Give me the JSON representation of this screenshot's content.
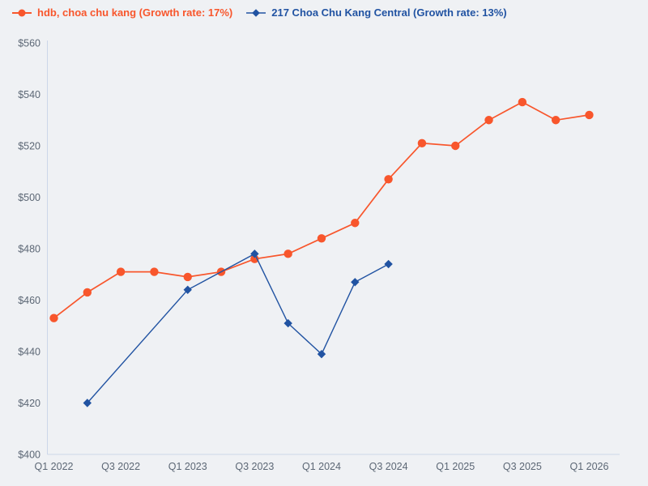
{
  "page": {
    "background_color": "#eff1f4",
    "axis_line_color": "#ccd6e9",
    "tick_label_color": "#5c6775"
  },
  "legend": {
    "items": [
      {
        "label": "hdb, choa chu kang (Growth rate: 17%)",
        "color": "#f8562c",
        "marker": "line-circle"
      },
      {
        "label": "217 Choa Chu Kang Central (Growth rate: 13%)",
        "color": "#2153a2",
        "marker": "line-diamond"
      }
    ]
  },
  "chart_data": {
    "type": "line",
    "x_categories": [
      "Q1 2022",
      "Q2 2022",
      "Q3 2022",
      "Q4 2022",
      "Q1 2023",
      "Q2 2023",
      "Q3 2023",
      "Q4 2023",
      "Q1 2024",
      "Q2 2024",
      "Q3 2024",
      "Q4 2024",
      "Q1 2025",
      "Q2 2025",
      "Q3 2025",
      "Q4 2025",
      "Q1 2026"
    ],
    "x_tick_labels": [
      "Q1 2022",
      "Q3 2022",
      "Q1 2023",
      "Q3 2023",
      "Q1 2024",
      "Q3 2024",
      "Q1 2025",
      "Q3 2025",
      "Q1 2026"
    ],
    "ylim": [
      400,
      560
    ],
    "y_ticks": [
      {
        "value": 400,
        "label": "$400"
      },
      {
        "value": 420,
        "label": "$420"
      },
      {
        "value": 440,
        "label": "$440"
      },
      {
        "value": 460,
        "label": "$460"
      },
      {
        "value": 480,
        "label": "$480"
      },
      {
        "value": 500,
        "label": "$500"
      },
      {
        "value": 520,
        "label": "$520"
      },
      {
        "value": 540,
        "label": "$540"
      },
      {
        "value": 560,
        "label": "$560"
      }
    ],
    "grid": false,
    "legend_position": "top-left",
    "series": [
      {
        "name": "hdb, choa chu kang (Growth rate: 17%)",
        "growth_rate": "17%",
        "color": "#f8562c",
        "marker": "circle",
        "points": [
          {
            "quarter": "Q1 2022",
            "value": 453
          },
          {
            "quarter": "Q2 2022",
            "value": 463
          },
          {
            "quarter": "Q3 2022",
            "value": 471
          },
          {
            "quarter": "Q4 2022",
            "value": 471
          },
          {
            "quarter": "Q1 2023",
            "value": 469
          },
          {
            "quarter": "Q2 2023",
            "value": 471
          },
          {
            "quarter": "Q3 2023",
            "value": 476
          },
          {
            "quarter": "Q4 2023",
            "value": 478
          },
          {
            "quarter": "Q1 2024",
            "value": 484
          },
          {
            "quarter": "Q2 2024",
            "value": 490
          },
          {
            "quarter": "Q3 2024",
            "value": 507
          },
          {
            "quarter": "Q4 2024",
            "value": 521
          },
          {
            "quarter": "Q1 2025",
            "value": 520
          },
          {
            "quarter": "Q2 2025",
            "value": 530
          },
          {
            "quarter": "Q3 2025",
            "value": 537
          },
          {
            "quarter": "Q4 2025",
            "value": 530
          },
          {
            "quarter": "Q1 2026",
            "value": 532
          }
        ]
      },
      {
        "name": "217 Choa Chu Kang Central (Growth rate: 13%)",
        "growth_rate": "13%",
        "color": "#2153a2",
        "marker": "diamond",
        "points": [
          {
            "quarter": "Q2 2022",
            "value": 420
          },
          {
            "quarter": "Q1 2023",
            "value": 464
          },
          {
            "quarter": "Q3 2023",
            "value": 478
          },
          {
            "quarter": "Q4 2023",
            "value": 451
          },
          {
            "quarter": "Q1 2024",
            "value": 439
          },
          {
            "quarter": "Q2 2024",
            "value": 467
          },
          {
            "quarter": "Q3 2024",
            "value": 474
          }
        ]
      }
    ]
  }
}
